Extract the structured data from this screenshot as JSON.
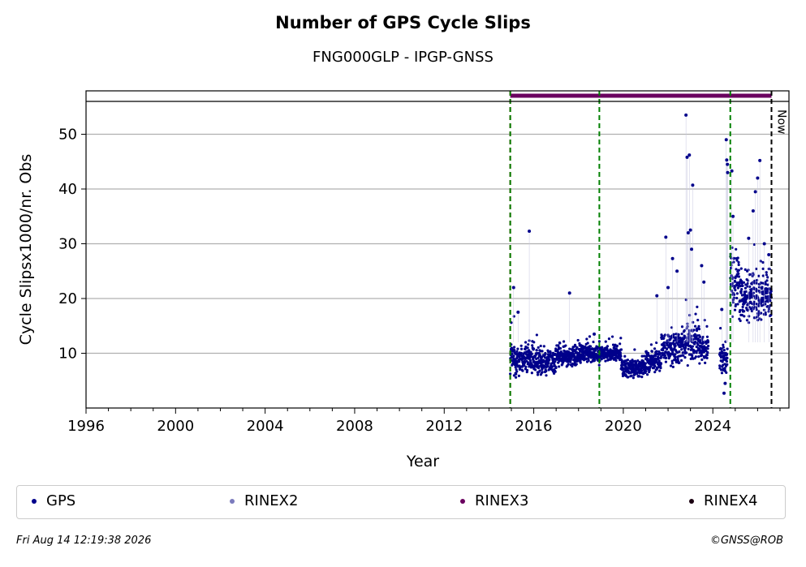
{
  "header": {
    "title": "Number of GPS Cycle Slips",
    "subtitle": "FNG000GLP - IPGP-GNSS"
  },
  "footer": {
    "timestamp": "Fri Aug 14 12:19:38 2026",
    "credit": "©GNSS@ROB"
  },
  "legend": {
    "items": [
      {
        "label": "GPS",
        "color": "#00008b"
      },
      {
        "label": "RINEX2",
        "color": "#7b7bbd"
      },
      {
        "label": "RINEX3",
        "color": "#6a005f"
      },
      {
        "label": "RINEX4",
        "color": "#1a0010"
      }
    ]
  },
  "chart_data": {
    "type": "scatter",
    "title": "Number of GPS Cycle Slips",
    "subtitle": "FNG000GLP - IPGP-GNSS",
    "xlabel": "Year",
    "ylabel": "Cycle Slipsx1000/nr. Obs",
    "xlim": [
      1996,
      2027.4
    ],
    "ylim": [
      0,
      56
    ],
    "xticks": [
      1996,
      2000,
      2004,
      2008,
      2012,
      2016,
      2020,
      2024
    ],
    "yticks": [
      10,
      20,
      30,
      40,
      50
    ],
    "grid": "horizontal",
    "legend_position": "bottom",
    "vertical_lines": [
      {
        "x": 2014.95,
        "color": "#cc0000",
        "style": "dashed"
      },
      {
        "x": 2014.95,
        "color": "#008000",
        "style": "dashed"
      },
      {
        "x": 2018.93,
        "color": "#008000",
        "style": "dashed"
      },
      {
        "x": 2024.78,
        "color": "#008000",
        "style": "dashed"
      },
      {
        "x": 2026.62,
        "color": "#000000",
        "style": "dashed",
        "label": "Now"
      }
    ],
    "rinex3_availability": [
      2014.95,
      2026.62
    ],
    "series": [
      {
        "name": "GPS",
        "color": "#00008b",
        "segments": [
          {
            "x_start": 2014.95,
            "x_end": 2015.5,
            "y_center": 9.0,
            "y_spread": 4.5
          },
          {
            "x_start": 2015.5,
            "x_end": 2016.0,
            "y_center": 9.0,
            "y_spread": 4.0
          },
          {
            "x_start": 2016.0,
            "x_end": 2017.0,
            "y_center": 8.6,
            "y_spread": 3.5
          },
          {
            "x_start": 2017.0,
            "x_end": 2018.0,
            "y_center": 9.5,
            "y_spread": 3.0
          },
          {
            "x_start": 2018.0,
            "x_end": 2019.0,
            "y_center": 10.0,
            "y_spread": 2.5
          },
          {
            "x_start": 2019.0,
            "x_end": 2019.9,
            "y_center": 10.0,
            "y_spread": 2.0
          },
          {
            "x_start": 2019.9,
            "x_end": 2021.0,
            "y_center": 7.2,
            "y_spread": 2.5
          },
          {
            "x_start": 2021.0,
            "x_end": 2021.7,
            "y_center": 8.5,
            "y_spread": 3.0
          },
          {
            "x_start": 2021.7,
            "x_end": 2022.5,
            "y_center": 11.0,
            "y_spread": 4.5
          },
          {
            "x_start": 2022.5,
            "x_end": 2023.4,
            "y_center": 12.0,
            "y_spread": 5.0
          },
          {
            "x_start": 2023.4,
            "x_end": 2023.8,
            "y_center": 11.0,
            "y_spread": 3.5
          },
          {
            "x_start": 2024.3,
            "x_end": 2024.65,
            "y_center": 9.0,
            "y_spread": 4.0
          },
          {
            "x_start": 2024.78,
            "x_end": 2025.2,
            "y_center": 23.0,
            "y_spread": 8.0
          },
          {
            "x_start": 2025.2,
            "x_end": 2026.62,
            "y_center": 20.5,
            "y_spread": 6.5
          }
        ],
        "outliers": [
          {
            "x": 2015.1,
            "y": 22.0
          },
          {
            "x": 2015.8,
            "y": 32.3
          },
          {
            "x": 2015.3,
            "y": 17.5
          },
          {
            "x": 2017.6,
            "y": 21.0
          },
          {
            "x": 2018.7,
            "y": 13.5
          },
          {
            "x": 2021.5,
            "y": 20.5
          },
          {
            "x": 2021.9,
            "y": 31.2
          },
          {
            "x": 2022.2,
            "y": 27.3
          },
          {
            "x": 2022.0,
            "y": 22.0
          },
          {
            "x": 2022.4,
            "y": 25.0
          },
          {
            "x": 2022.8,
            "y": 53.5
          },
          {
            "x": 2022.85,
            "y": 45.8
          },
          {
            "x": 2022.95,
            "y": 46.2
          },
          {
            "x": 2023.1,
            "y": 40.7
          },
          {
            "x": 2023.0,
            "y": 32.5
          },
          {
            "x": 2022.9,
            "y": 32.0
          },
          {
            "x": 2023.05,
            "y": 29.0
          },
          {
            "x": 2023.5,
            "y": 26.0
          },
          {
            "x": 2023.6,
            "y": 23.0
          },
          {
            "x": 2024.4,
            "y": 18.0
          },
          {
            "x": 2024.5,
            "y": 2.7
          },
          {
            "x": 2024.55,
            "y": 4.5
          },
          {
            "x": 2024.6,
            "y": 49.0
          },
          {
            "x": 2024.62,
            "y": 45.3
          },
          {
            "x": 2024.65,
            "y": 44.5
          },
          {
            "x": 2024.66,
            "y": 43.0
          },
          {
            "x": 2024.85,
            "y": 43.3
          },
          {
            "x": 2024.9,
            "y": 35.0
          },
          {
            "x": 2025.6,
            "y": 31.0
          },
          {
            "x": 2025.8,
            "y": 36.0
          },
          {
            "x": 2025.9,
            "y": 39.5
          },
          {
            "x": 2026.0,
            "y": 42.0
          },
          {
            "x": 2026.1,
            "y": 45.2
          },
          {
            "x": 2026.3,
            "y": 30.0
          },
          {
            "x": 2026.5,
            "y": 28.0
          }
        ]
      }
    ]
  }
}
